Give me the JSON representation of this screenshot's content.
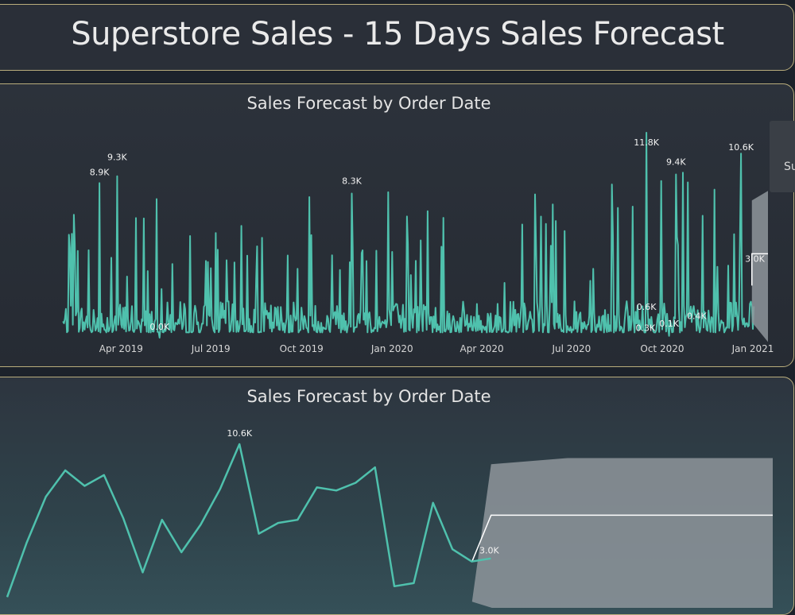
{
  "header": {
    "title": "Superstore Sales - 15 Days Sales Forecast"
  },
  "tooltip": {
    "text": "Su"
  },
  "colors": {
    "line": "#4fc1ad",
    "forecast_band": "#8e959b",
    "forecast_line": "#ffffff"
  },
  "chart_data": [
    {
      "type": "line",
      "title": "Sales Forecast by Order Date",
      "x_range": [
        "2019-02-01",
        "2021-01-15"
      ],
      "forecast_range": [
        "2020-12-31",
        "2021-01-15"
      ],
      "x_ticks": [
        "Apr 2019",
        "Jul 2019",
        "Oct 2019",
        "Jan 2020",
        "Apr 2020",
        "Jul 2020",
        "Oct 2020",
        "Jan 2021"
      ],
      "ylim": [
        0,
        12.5
      ],
      "y_unit": "K",
      "annotations": [
        {
          "x": "2019-03-10",
          "y": 8.9,
          "label": "8.9K"
        },
        {
          "x": "2019-03-28",
          "y": 9.3,
          "label": "9.3K"
        },
        {
          "x": "2019-05-10",
          "y": 0.0,
          "label": "0.0K"
        },
        {
          "x": "2019-11-21",
          "y": 8.3,
          "label": "8.3K"
        },
        {
          "x": "2020-09-15",
          "y": 0.6,
          "label": "0.6K"
        },
        {
          "x": "2020-09-14",
          "y": 0.3,
          "label": "0.3K"
        },
        {
          "x": "2020-09-15",
          "y": 11.8,
          "label": "11.8K"
        },
        {
          "x": "2020-10-08",
          "y": 0.1,
          "label": "0.1K"
        },
        {
          "x": "2020-10-15",
          "y": 9.4,
          "label": "9.4K"
        },
        {
          "x": "2020-11-05",
          "y": 0.4,
          "label": "0.4K"
        },
        {
          "x": "2020-12-20",
          "y": 10.6,
          "label": "10.6K"
        },
        {
          "x": "2021-01-03",
          "y": 3.0,
          "label": "3.0K"
        }
      ],
      "forecast": {
        "value": 3.0,
        "upper": 7.9,
        "lower": 0.9
      }
    },
    {
      "type": "line",
      "title": "Sales Forecast by Order Date",
      "x": [
        "2020-12-02",
        "2020-12-03",
        "2020-12-04",
        "2020-12-05",
        "2020-12-06",
        "2020-12-07",
        "2020-12-08",
        "2020-12-09",
        "2020-12-10",
        "2020-12-11",
        "2020-12-12",
        "2020-12-13",
        "2020-12-14",
        "2020-12-15",
        "2020-12-16",
        "2020-12-17",
        "2020-12-18",
        "2020-12-19",
        "2020-12-20",
        "2020-12-21",
        "2020-12-22",
        "2020-12-23",
        "2020-12-24",
        "2020-12-25",
        "2020-12-26"
      ],
      "values": [
        0.7,
        4.2,
        7.2,
        8.9,
        7.9,
        8.6,
        5.8,
        2.3,
        5.7,
        3.6,
        5.4,
        7.7,
        10.6,
        4.8,
        5.5,
        5.7,
        7.8,
        7.6,
        8.1,
        9.1,
        1.4,
        1.6,
        6.8,
        3.8,
        3.0
      ],
      "ylim": [
        0,
        12.3
      ],
      "annotations": [
        {
          "x": "2020-12-14",
          "y": 10.6,
          "label": "10.6K"
        },
        {
          "x": "2020-12-26",
          "y": 3.0,
          "label": "3.0K"
        }
      ],
      "forecast": {
        "start": "2020-12-27",
        "end": "2021-01-10",
        "value": 3.0,
        "upper": 9.7,
        "lower": 0.1
      }
    }
  ]
}
